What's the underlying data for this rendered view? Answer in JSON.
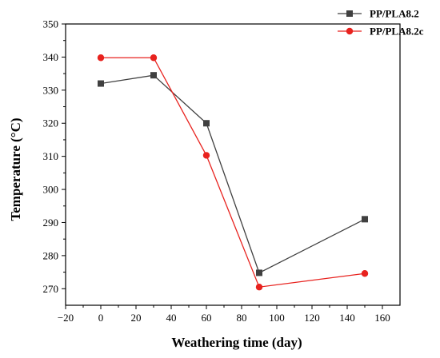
{
  "chart_data": {
    "type": "line",
    "xlabel": "Weathering time (day)",
    "ylabel": "Temperature (°C)",
    "xlim": [
      -20,
      170
    ],
    "ylim": [
      265,
      350
    ],
    "xticks": [
      -20,
      0,
      20,
      40,
      60,
      80,
      100,
      120,
      140,
      160
    ],
    "yticks": [
      270,
      280,
      290,
      300,
      310,
      320,
      330,
      340,
      350
    ],
    "grid": false,
    "legend_position": "top-right",
    "x": [
      0,
      30,
      60,
      90,
      150
    ],
    "series": [
      {
        "name": "PP/PLA8.2",
        "values": [
          332,
          334.5,
          320,
          274.8,
          291
        ],
        "color": "#404040",
        "marker": "square"
      },
      {
        "name": "PP/PLA8.2c",
        "values": [
          339.8,
          339.8,
          310.3,
          270.5,
          274.6
        ],
        "color": "#e8221e",
        "marker": "circle"
      }
    ]
  }
}
